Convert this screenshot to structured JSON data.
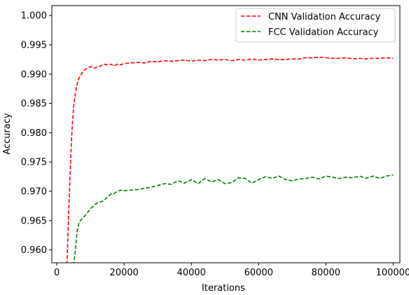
{
  "chart_data": {
    "type": "line",
    "title": "",
    "xlabel": "Iterations",
    "ylabel": "Accuracy",
    "xlim": [
      -1500,
      102000
    ],
    "ylim": [
      0.9578,
      1.0017
    ],
    "xticks": [
      0,
      20000,
      40000,
      60000,
      80000,
      100000
    ],
    "xtick_labels": [
      "0",
      "20000",
      "40000",
      "60000",
      "80000",
      "100000"
    ],
    "yticks": [
      0.96,
      0.965,
      0.97,
      0.975,
      0.98,
      0.985,
      0.99,
      0.995,
      1.0
    ],
    "ytick_labels": [
      "0.960",
      "0.965",
      "0.970",
      "0.975",
      "0.980",
      "0.985",
      "0.990",
      "0.995",
      "1.000"
    ],
    "grid": false,
    "legend_position": "top-right",
    "series": [
      {
        "name": "CNN Validation Accuracy",
        "color": "#ff0000",
        "style": "dashed",
        "x": [
          3000,
          3500,
          4000,
          4500,
          5000,
          5500,
          6000,
          6500,
          7000,
          7500,
          8000,
          9000,
          10000,
          11000,
          12000,
          13000,
          14000,
          15000,
          16000,
          17000,
          18000,
          19000,
          20000,
          22000,
          24000,
          26000,
          28000,
          30000,
          32000,
          34000,
          36000,
          38000,
          40000,
          42000,
          44000,
          46000,
          48000,
          50000,
          52000,
          54000,
          56000,
          58000,
          60000,
          62000,
          64000,
          66000,
          68000,
          70000,
          72000,
          74000,
          76000,
          78000,
          80000,
          82000,
          84000,
          86000,
          88000,
          90000,
          92000,
          94000,
          96000,
          98000,
          100000
        ],
        "values": [
          0.9575,
          0.966,
          0.974,
          0.9805,
          0.9845,
          0.9868,
          0.9882,
          0.9892,
          0.9898,
          0.9902,
          0.9906,
          0.991,
          0.9913,
          0.991,
          0.9912,
          0.9914,
          0.9917,
          0.9916,
          0.9917,
          0.9914,
          0.9917,
          0.9916,
          0.9918,
          0.9919,
          0.992,
          0.9919,
          0.9922,
          0.9921,
          0.9923,
          0.9922,
          0.9923,
          0.9924,
          0.9922,
          0.9924,
          0.9923,
          0.9925,
          0.9924,
          0.9925,
          0.9923,
          0.9925,
          0.9924,
          0.9926,
          0.9924,
          0.9925,
          0.9926,
          0.9925,
          0.9925,
          0.9926,
          0.9926,
          0.9928,
          0.9928,
          0.9929,
          0.9928,
          0.9927,
          0.9927,
          0.9928,
          0.9926,
          0.9927,
          0.9926,
          0.9927,
          0.9927,
          0.9928,
          0.9927
        ]
      },
      {
        "name": "FCC Validation Accuracy",
        "color": "#008000",
        "style": "dashed",
        "x": [
          5000,
          5500,
          6000,
          6500,
          7000,
          8000,
          9000,
          10000,
          11000,
          12000,
          13000,
          14000,
          15000,
          16000,
          17000,
          18000,
          19000,
          20000,
          22000,
          24000,
          26000,
          28000,
          30000,
          32000,
          34000,
          36000,
          38000,
          40000,
          42000,
          44000,
          46000,
          48000,
          50000,
          52000,
          54000,
          56000,
          58000,
          60000,
          62000,
          64000,
          66000,
          68000,
          70000,
          72000,
          74000,
          76000,
          78000,
          80000,
          82000,
          84000,
          86000,
          88000,
          90000,
          92000,
          94000,
          96000,
          98000,
          100000
        ],
        "values": [
          0.9573,
          0.96,
          0.963,
          0.9645,
          0.965,
          0.9656,
          0.9663,
          0.967,
          0.9676,
          0.968,
          0.9682,
          0.9684,
          0.969,
          0.9695,
          0.9696,
          0.97,
          0.9702,
          0.9701,
          0.9702,
          0.9703,
          0.9705,
          0.9707,
          0.971,
          0.9713,
          0.9712,
          0.9718,
          0.9714,
          0.972,
          0.9713,
          0.9722,
          0.9716,
          0.972,
          0.9713,
          0.9715,
          0.9723,
          0.9722,
          0.9714,
          0.972,
          0.9725,
          0.9722,
          0.9726,
          0.972,
          0.9718,
          0.9721,
          0.9722,
          0.9724,
          0.9721,
          0.9726,
          0.9724,
          0.9722,
          0.9724,
          0.9723,
          0.9726,
          0.9722,
          0.9726,
          0.9722,
          0.9726,
          0.9728
        ]
      }
    ]
  }
}
